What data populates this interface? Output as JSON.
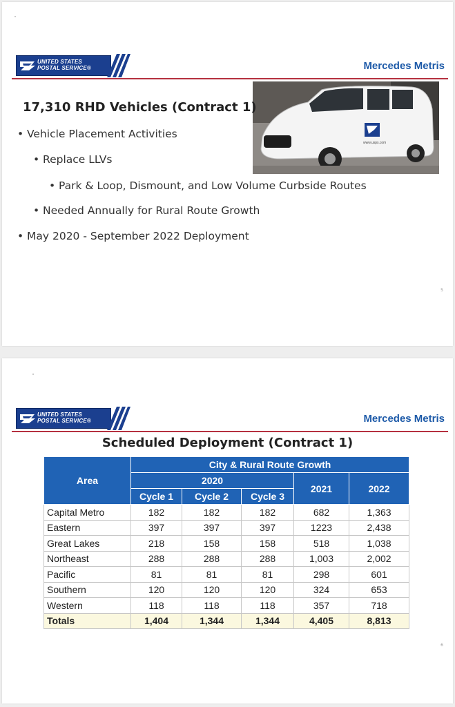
{
  "logo": {
    "line1": "UNITED STATES",
    "line2": "POSTAL SERVICE®"
  },
  "slide1": {
    "brand": "Mercedes Metris",
    "title": "17,310  RHD Vehicles (Contract 1)",
    "bullets": [
      {
        "text": "Vehicle Placement Activities",
        "level": 1
      },
      {
        "text": "Replace LLVs",
        "level": 2
      },
      {
        "text": "Park & Loop, Dismount, and Low Volume Curbside Routes",
        "level": 3
      },
      {
        "text": "Needed Annually for Rural Route Growth",
        "level": 2
      },
      {
        "text": "May 2020 - September 2022 Deployment",
        "level": 1
      }
    ],
    "van_image": {
      "icon": "usps-van-photo",
      "van_text": "www.usps.com"
    },
    "page_number": "5"
  },
  "slide2": {
    "brand": "Mercedes Metris",
    "title": "Scheduled Deployment (Contract 1)",
    "table": {
      "group_header": "City & Rural Route Growth",
      "year_2020": "2020",
      "area_header": "Area",
      "cycle_headers": [
        "Cycle 1",
        "Cycle 2",
        "Cycle 3"
      ],
      "year_2021": "2021",
      "year_2022": "2022",
      "rows": [
        {
          "area": "Capital Metro",
          "values": [
            "182",
            "182",
            "182",
            "682",
            "1,363"
          ]
        },
        {
          "area": "Eastern",
          "values": [
            "397",
            "397",
            "397",
            "1223",
            "2,438"
          ]
        },
        {
          "area": "Great Lakes",
          "values": [
            "218",
            "158",
            "158",
            "518",
            "1,038"
          ]
        },
        {
          "area": "Northeast",
          "values": [
            "288",
            "288",
            "288",
            "1,003",
            "2,002"
          ]
        },
        {
          "area": "Pacific",
          "values": [
            "81",
            "81",
            "81",
            "298",
            "601"
          ]
        },
        {
          "area": "Southern",
          "values": [
            "120",
            "120",
            "120",
            "324",
            "653"
          ]
        },
        {
          "area": "Western",
          "values": [
            "118",
            "118",
            "118",
            "357",
            "718"
          ]
        }
      ],
      "totals": {
        "label": "Totals",
        "values": [
          "1,404",
          "1,344",
          "1,344",
          "4,405",
          "8,813"
        ]
      }
    },
    "page_number": "6"
  },
  "colors": {
    "usps_blue": "#1b3f8f",
    "brand_blue": "#1d5aa8",
    "header_red": "#b5303f",
    "table_header_blue": "#2063b5",
    "totals_bg": "#fbf8df"
  }
}
